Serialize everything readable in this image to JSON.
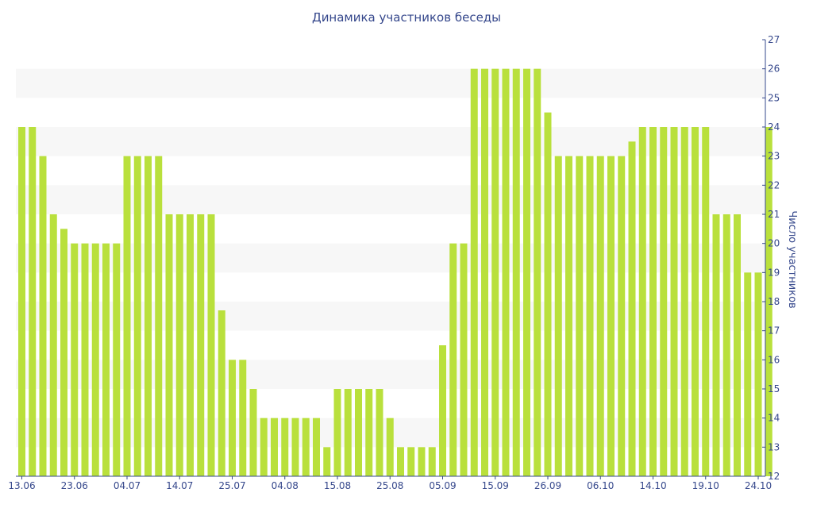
{
  "chart_data": {
    "type": "bar",
    "title": "Динамика участников беседы",
    "xlabel": "",
    "ylabel": "Число участников",
    "y_axis_side": "right",
    "ylim": [
      12,
      27
    ],
    "yticks": [
      12,
      13,
      14,
      15,
      16,
      17,
      18,
      19,
      20,
      21,
      22,
      23,
      24,
      25,
      26,
      27
    ],
    "x_tick_labels": [
      "13.06",
      "23.06",
      "04.07",
      "14.07",
      "25.07",
      "04.08",
      "15.08",
      "25.08",
      "05.09",
      "15.09",
      "26.09",
      "06.10",
      "14.10",
      "19.10",
      "24.10"
    ],
    "x_tick_bar_index": [
      0,
      5,
      10,
      15,
      20,
      25,
      30,
      35,
      40,
      45,
      50,
      55,
      60,
      65,
      70
    ],
    "grid": "horizontal bands",
    "bar_color": "#b9e03c",
    "band_color": "#f7f7f7",
    "text_color": "#36488c",
    "values": [
      24,
      24,
      23,
      21,
      20.5,
      20,
      20,
      20,
      20,
      20,
      23,
      23,
      23,
      23,
      21,
      21,
      21,
      21,
      21,
      17.7,
      16,
      16,
      15,
      14,
      14,
      14,
      14,
      14,
      14,
      13,
      15,
      15,
      15,
      15,
      15,
      14,
      13,
      13,
      13,
      13,
      16.5,
      20,
      20,
      26,
      26,
      26,
      26,
      26,
      26,
      26,
      24.5,
      23,
      23,
      23,
      23,
      23,
      23,
      23,
      23.5,
      24,
      24,
      24,
      24,
      24,
      24,
      24,
      21,
      21,
      21,
      19,
      19,
      24
    ]
  }
}
